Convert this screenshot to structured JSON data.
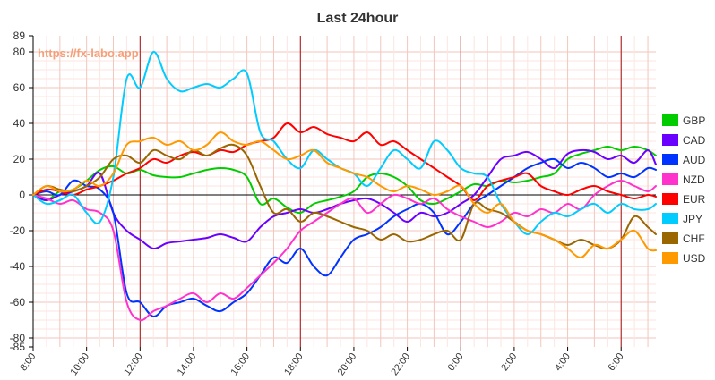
{
  "chart_data": {
    "type": "line",
    "title": "Last 24hour",
    "watermark": "https://fx-labo.app",
    "xlabel": "",
    "ylabel": "",
    "ylim": [
      -85,
      89
    ],
    "y_ticks": [
      "89",
      "80",
      "60",
      "40",
      "20",
      "0",
      "-20",
      "-40",
      "-60",
      "-80",
      "-85"
    ],
    "x_ticks": [
      "8:00",
      "10:00",
      "12:00",
      "14:00",
      "16:00",
      "18:00",
      "20:00",
      "22:00",
      "0:00",
      "2:00",
      "4:00",
      "6:00"
    ],
    "x_range_hours": [
      0,
      23.3
    ],
    "vertical_markers_hours": [
      4,
      10,
      16,
      22
    ],
    "grid": true,
    "legend_position": "right",
    "series": [
      {
        "name": "GBP",
        "color": "#00cc00",
        "x": [
          0,
          0.5,
          1,
          1.5,
          2,
          2.5,
          3,
          3.5,
          4,
          4.5,
          5,
          5.5,
          6,
          6.5,
          7,
          7.5,
          8,
          8.5,
          9,
          9.5,
          10,
          10.5,
          11,
          11.5,
          12,
          12.5,
          13,
          13.5,
          14,
          14.5,
          15,
          15.5,
          16,
          16.5,
          17,
          17.5,
          18,
          18.5,
          19,
          19.5,
          20,
          20.5,
          21,
          21.5,
          22,
          22.5,
          23,
          23.3
        ],
        "values": [
          0,
          -3,
          2,
          3,
          8,
          14,
          16,
          12,
          14,
          11,
          10,
          10,
          12,
          14,
          15,
          14,
          10,
          -5,
          -2,
          -7,
          -10,
          -5,
          -3,
          -1,
          2,
          10,
          12,
          10,
          5,
          -3,
          -5,
          -2,
          2,
          6,
          5,
          8,
          7,
          8,
          10,
          12,
          20,
          23,
          25,
          27,
          25,
          27,
          25,
          22
        ]
      },
      {
        "name": "CAD",
        "color": "#6a00ff",
        "x": [
          0,
          0.5,
          1,
          1.5,
          2,
          2.5,
          3,
          3.5,
          4,
          4.5,
          5,
          5.5,
          6,
          6.5,
          7,
          7.5,
          8,
          8.5,
          9,
          9.5,
          10,
          10.5,
          11,
          11.5,
          12,
          12.5,
          13,
          13.5,
          14,
          14.5,
          15,
          15.5,
          16,
          16.5,
          17,
          17.5,
          18,
          18.5,
          19,
          19.5,
          20,
          20.5,
          21,
          21.5,
          22,
          22.5,
          23,
          23.3
        ],
        "values": [
          0,
          -3,
          0,
          2,
          5,
          12,
          -10,
          -20,
          -25,
          -30,
          -27,
          -26,
          -25,
          -24,
          -22,
          -24,
          -26,
          -18,
          -12,
          -10,
          -8,
          -10,
          -8,
          -5,
          -3,
          -2,
          -5,
          -10,
          -15,
          -10,
          -12,
          -10,
          -5,
          0,
          10,
          20,
          22,
          24,
          20,
          15,
          23,
          25,
          24,
          20,
          22,
          18,
          25,
          17
        ]
      },
      {
        "name": "AUD",
        "color": "#0033ff",
        "x": [
          0,
          0.5,
          1,
          1.5,
          2,
          2.5,
          3,
          3.5,
          4,
          4.5,
          5,
          5.5,
          6,
          6.5,
          7,
          7.5,
          8,
          8.5,
          9,
          9.5,
          10,
          10.5,
          11,
          11.5,
          12,
          12.5,
          13,
          13.5,
          14,
          14.5,
          15,
          15.5,
          16,
          16.5,
          17,
          17.5,
          18,
          18.5,
          19,
          19.5,
          20,
          20.5,
          21,
          21.5,
          22,
          22.5,
          23,
          23.3
        ],
        "values": [
          0,
          2,
          0,
          8,
          5,
          3,
          -10,
          -55,
          -60,
          -68,
          -62,
          -60,
          -58,
          -62,
          -65,
          -60,
          -55,
          -45,
          -35,
          -38,
          -30,
          -40,
          -45,
          -35,
          -25,
          -22,
          -18,
          -12,
          -8,
          -5,
          -10,
          -22,
          -15,
          -5,
          0,
          5,
          10,
          15,
          18,
          20,
          15,
          18,
          15,
          10,
          12,
          10,
          15,
          14
        ]
      },
      {
        "name": "NZD",
        "color": "#ff33cc",
        "x": [
          0,
          0.5,
          1,
          1.5,
          2,
          2.5,
          3,
          3.5,
          4,
          4.5,
          5,
          5.5,
          6,
          6.5,
          7,
          7.5,
          8,
          8.5,
          9,
          9.5,
          10,
          10.5,
          11,
          11.5,
          12,
          12.5,
          13,
          13.5,
          14,
          14.5,
          15,
          15.5,
          16,
          16.5,
          17,
          17.5,
          18,
          18.5,
          19,
          19.5,
          20,
          20.5,
          21,
          21.5,
          22,
          22.5,
          23,
          23.3
        ],
        "values": [
          0,
          -2,
          -5,
          -3,
          -8,
          -10,
          -20,
          -60,
          -70,
          -65,
          -62,
          -58,
          -55,
          -60,
          -55,
          -58,
          -52,
          -45,
          -38,
          -30,
          -20,
          -15,
          -10,
          -5,
          -2,
          -10,
          -5,
          0,
          -2,
          -5,
          -2,
          -8,
          -12,
          -15,
          -18,
          -15,
          -10,
          -12,
          -8,
          -10,
          -5,
          -8,
          0,
          5,
          8,
          5,
          2,
          5
        ]
      },
      {
        "name": "EUR",
        "color": "#ff0000",
        "x": [
          0,
          0.5,
          1,
          1.5,
          2,
          2.5,
          3,
          3.5,
          4,
          4.5,
          5,
          5.5,
          6,
          6.5,
          7,
          7.5,
          8,
          8.5,
          9,
          9.5,
          10,
          10.5,
          11,
          11.5,
          12,
          12.5,
          13,
          13.5,
          14,
          14.5,
          15,
          15.5,
          16,
          16.5,
          17,
          17.5,
          18,
          18.5,
          19,
          19.5,
          20,
          20.5,
          21,
          21.5,
          22,
          22.5,
          23,
          23.3
        ],
        "values": [
          0,
          3,
          2,
          0,
          3,
          5,
          8,
          12,
          15,
          20,
          18,
          22,
          24,
          22,
          25,
          24,
          28,
          30,
          32,
          40,
          35,
          38,
          34,
          32,
          30,
          35,
          28,
          30,
          25,
          20,
          15,
          10,
          5,
          -3,
          5,
          8,
          10,
          12,
          5,
          2,
          0,
          3,
          5,
          2,
          0,
          -2,
          0,
          -1
        ]
      },
      {
        "name": "JPY",
        "color": "#00ccff",
        "x": [
          0,
          0.5,
          1,
          1.5,
          2,
          2.5,
          3,
          3.5,
          4,
          4.5,
          5,
          5.5,
          6,
          6.5,
          7,
          7.5,
          8,
          8.5,
          9,
          9.5,
          10,
          10.5,
          11,
          11.5,
          12,
          12.5,
          13,
          13.5,
          14,
          14.5,
          15,
          15.5,
          16,
          16.5,
          17,
          17.5,
          18,
          18.5,
          19,
          19.5,
          20,
          20.5,
          21,
          21.5,
          22,
          22.5,
          23,
          23.3
        ],
        "values": [
          0,
          -5,
          -3,
          0,
          -10,
          -15,
          10,
          65,
          60,
          80,
          65,
          58,
          60,
          62,
          60,
          65,
          68,
          35,
          30,
          20,
          15,
          25,
          20,
          15,
          12,
          5,
          15,
          25,
          20,
          15,
          30,
          25,
          15,
          12,
          10,
          -5,
          -15,
          -22,
          -15,
          -10,
          -12,
          -8,
          -5,
          -10,
          -5,
          -8,
          -8,
          -5
        ]
      },
      {
        "name": "CHF",
        "color": "#996600",
        "x": [
          0,
          0.5,
          1,
          1.5,
          2,
          2.5,
          3,
          3.5,
          4,
          4.5,
          5,
          5.5,
          6,
          6.5,
          7,
          7.5,
          8,
          8.5,
          9,
          9.5,
          10,
          10.5,
          11,
          11.5,
          12,
          12.5,
          13,
          13.5,
          14,
          14.5,
          15,
          15.5,
          16,
          16.5,
          17,
          17.5,
          18,
          18.5,
          19,
          19.5,
          20,
          20.5,
          21,
          21.5,
          22,
          22.5,
          23,
          23.3
        ],
        "values": [
          0,
          5,
          3,
          2,
          5,
          10,
          20,
          22,
          18,
          25,
          22,
          20,
          25,
          22,
          26,
          28,
          22,
          5,
          -10,
          -8,
          -15,
          -10,
          -12,
          -15,
          -18,
          -20,
          -25,
          -22,
          -26,
          -25,
          -22,
          -20,
          -25,
          -5,
          -8,
          -10,
          -15,
          -20,
          -22,
          -25,
          -28,
          -25,
          -28,
          -30,
          -25,
          -12,
          -18,
          -22
        ]
      },
      {
        "name": "USD",
        "color": "#ff9900",
        "x": [
          0,
          0.5,
          1,
          1.5,
          2,
          2.5,
          3,
          3.5,
          4,
          4.5,
          5,
          5.5,
          6,
          6.5,
          7,
          7.5,
          8,
          8.5,
          9,
          9.5,
          10,
          10.5,
          11,
          11.5,
          12,
          12.5,
          13,
          13.5,
          14,
          14.5,
          15,
          15.5,
          16,
          16.5,
          17,
          17.5,
          18,
          18.5,
          19,
          19.5,
          20,
          20.5,
          21,
          21.5,
          22,
          22.5,
          23,
          23.3
        ],
        "values": [
          0,
          5,
          2,
          3,
          8,
          5,
          12,
          28,
          30,
          32,
          28,
          30,
          25,
          28,
          35,
          30,
          28,
          30,
          25,
          20,
          22,
          25,
          18,
          15,
          12,
          10,
          5,
          2,
          5,
          3,
          0,
          2,
          5,
          -5,
          -10,
          -5,
          -15,
          -20,
          -22,
          -25,
          -30,
          -35,
          -28,
          -30,
          -25,
          -20,
          -30,
          -31
        ]
      }
    ]
  }
}
